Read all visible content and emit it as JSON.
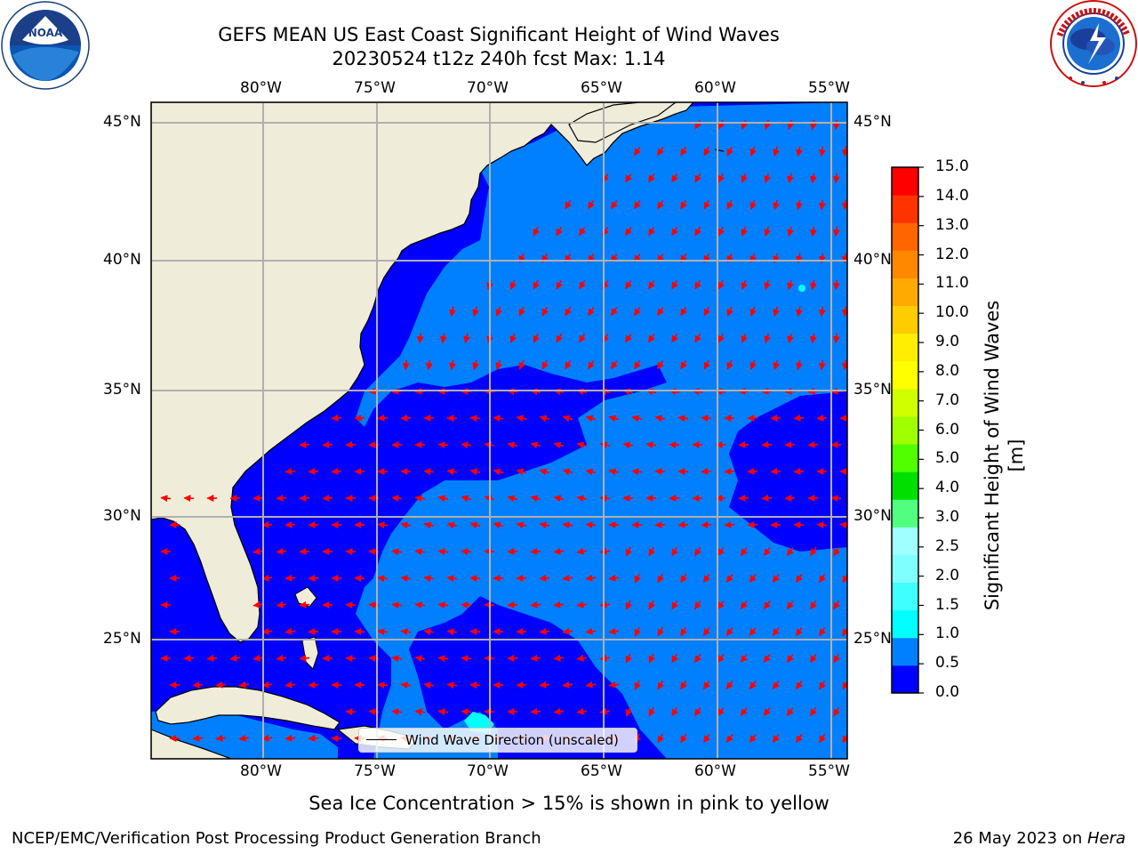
{
  "header": {
    "title_line1": "GEFS MEAN US East Coast Significant Height of Wind Waves",
    "title_line2": "20230524 t12z 240h fcst   Max: 1.14"
  },
  "logos": {
    "left": {
      "name": "noaa-logo",
      "text": "NOAA",
      "ring_text": "NATIONAL OCEANIC AND ATMOSPHERIC ADMINISTRATION · U.S. DEPARTMENT OF COMMERCE"
    },
    "right": {
      "name": "nws-logo",
      "ring_text": "NATIONAL WEATHER SERVICE"
    }
  },
  "map": {
    "lon_ticks": [
      "80°W",
      "75°W",
      "70°W",
      "65°W",
      "60°W",
      "55°W"
    ],
    "lat_ticks": [
      "45°N",
      "40°N",
      "35°N",
      "30°N",
      "25°N"
    ],
    "legend_label": "Wind Wave Direction (unscaled)",
    "colors": {
      "land": "#efedda",
      "wave_0_0_5": "#0000ff",
      "wave_0_5_1_0": "#0080ff",
      "wave_1_0_1_5": "#00ffff",
      "arrow": "#ff0000",
      "grid": "#b0b0b0"
    }
  },
  "colorbar": {
    "label": "Significant Height of Wind Waves [m]",
    "ticks": [
      "0.0",
      "0.5",
      "1.0",
      "1.5",
      "2.0",
      "2.5",
      "3.0",
      "4.0",
      "5.0",
      "6.0",
      "7.0",
      "8.0",
      "9.0",
      "10.0",
      "11.0",
      "12.0",
      "13.0",
      "14.0",
      "15.0"
    ],
    "colors": [
      "#0000ff",
      "#0080ff",
      "#00ffff",
      "#40ffff",
      "#80ffff",
      "#a0ffff",
      "#50ff80",
      "#00e000",
      "#50ff00",
      "#a0ff00",
      "#d0ff00",
      "#ffff00",
      "#ffee00",
      "#ffcc00",
      "#ffaa00",
      "#ff8800",
      "#ff6600",
      "#ff3300",
      "#ff0000"
    ]
  },
  "footer": {
    "ice_note": "Sea Ice Concentration > 15% is shown in pink to yellow",
    "branch": "NCEP/EMC/Verification Post Processing Product Generation Branch",
    "date": "26 May 2023 on ",
    "machine": "Hera"
  }
}
